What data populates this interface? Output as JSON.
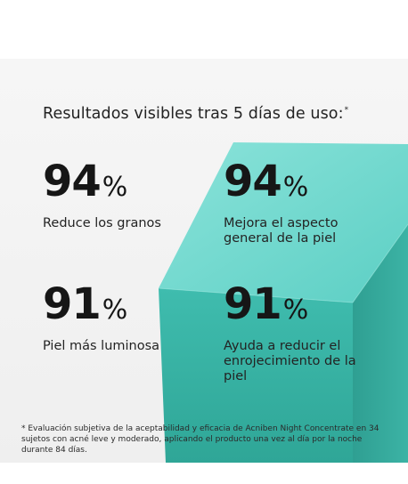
{
  "headline": {
    "text": "Resultados visibles tras 5 días de uso:",
    "marker": "*"
  },
  "stats": [
    {
      "value": "94",
      "unit": "%",
      "label": "Reduce los granos"
    },
    {
      "value": "94",
      "unit": "%",
      "label": "Mejora el aspecto general de la piel"
    },
    {
      "value": "91",
      "unit": "%",
      "label": "Piel más luminosa"
    },
    {
      "value": "91",
      "unit": "%",
      "label": "Ayuda a reducir el enrojecimiento de la piel"
    }
  ],
  "footnote": "* Evaluación subjetiva de la aceptabilidad y eficacia de Acniben Night Concentrate en 34 sujetos con acné leve y moderado, aplicando el producto una vez al día por la noche durante 84 días.",
  "colors": {
    "background": "#f2f2f2",
    "cube_top": "#6fd8cf",
    "cube_front": "#38b2a4",
    "cube_side": "#2c9c90",
    "text": "#1f1f1f"
  }
}
